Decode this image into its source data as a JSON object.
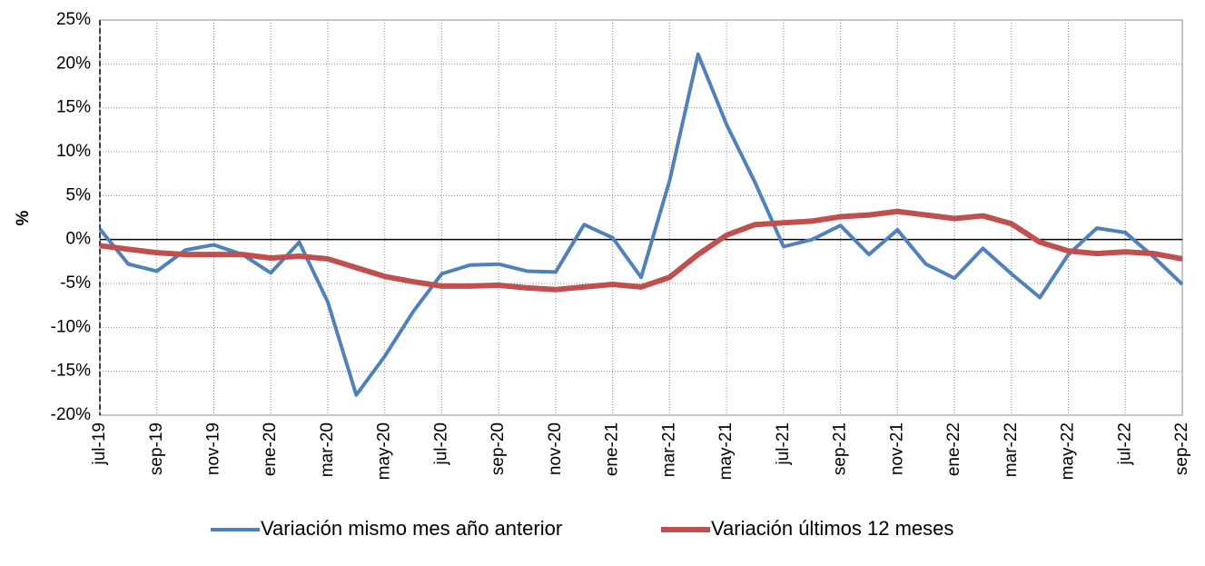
{
  "chart_data": {
    "type": "line",
    "ylabel": "%",
    "categories": [
      "jul-19",
      null,
      "sep-19",
      null,
      "nov-19",
      null,
      "ene-20",
      null,
      "mar-20",
      null,
      "may-20",
      null,
      "jul-20",
      null,
      "sep-20",
      null,
      "nov-20",
      null,
      "ene-21",
      null,
      "mar-21",
      null,
      "may-21",
      null,
      "jul-21",
      null,
      "sep-21",
      null,
      "nov-21",
      null,
      "ene-22",
      null,
      "mar-22",
      null,
      "may-22",
      null,
      "jul-22",
      null,
      "sep-22"
    ],
    "series": [
      {
        "name": "Variación mismo mes año anterior",
        "color": "#4f81bd",
        "values": [
          1.2,
          -2.8,
          -3.6,
          -1.2,
          -0.6,
          -1.7,
          -3.8,
          -0.3,
          -7.1,
          -17.7,
          -13.3,
          -8.2,
          -3.9,
          -2.9,
          -2.8,
          -3.6,
          -3.7,
          1.7,
          0.2,
          -4.3,
          6.7,
          21.1,
          13.1,
          6.5,
          -0.8,
          0.0,
          1.6,
          -1.7,
          1.1,
          -2.8,
          -4.4,
          -1.0,
          -3.9,
          -6.6,
          -1.7,
          1.3,
          0.8,
          -2.0,
          -5.1
        ]
      },
      {
        "name": "Variación últimos 12 meses",
        "color": "#c0504d",
        "values": [
          -0.7,
          -1.1,
          -1.5,
          -1.7,
          -1.7,
          -1.7,
          -2.1,
          -1.9,
          -2.2,
          -3.2,
          -4.2,
          -4.8,
          -5.3,
          -5.3,
          -5.2,
          -5.5,
          -5.7,
          -5.4,
          -5.1,
          -5.4,
          -4.3,
          -1.7,
          0.5,
          1.7,
          1.9,
          2.1,
          2.6,
          2.8,
          3.2,
          2.8,
          2.4,
          2.7,
          1.8,
          -0.3,
          -1.3,
          -1.6,
          -1.4,
          -1.6,
          -2.2
        ]
      }
    ],
    "ylim": [
      -20,
      25
    ],
    "yticks": [
      {
        "value": -20,
        "label": "-20%"
      },
      {
        "value": -15,
        "label": "-15%"
      },
      {
        "value": -10,
        "label": "-10%"
      },
      {
        "value": -5,
        "label": "-5%"
      },
      {
        "value": 0,
        "label": "0%"
      },
      {
        "value": 5,
        "label": "5%"
      },
      {
        "value": 10,
        "label": "10%"
      },
      {
        "value": 15,
        "label": "15%"
      },
      {
        "value": 20,
        "label": "20%"
      },
      {
        "value": 25,
        "label": "25%"
      }
    ],
    "grid": true,
    "legend": "bottom"
  }
}
